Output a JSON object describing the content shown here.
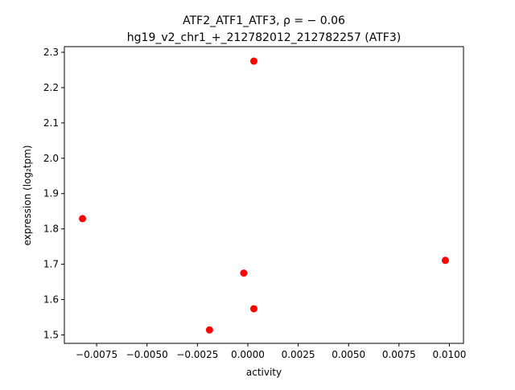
{
  "chart_data": {
    "type": "scatter",
    "title_line1": "ATF2_ATF1_ATF3, ρ = − 0.06",
    "title_line2": "hg19_v2_chr1_+_212782012_212782257 (ATF3)",
    "xlabel": "activity",
    "ylabel": "expression (log₂tpm)",
    "xlim": [
      -0.0091,
      0.0107
    ],
    "ylim": [
      1.476,
      2.316
    ],
    "x_ticks": [
      -0.0075,
      -0.005,
      -0.0025,
      0.0,
      0.0025,
      0.005,
      0.0075,
      0.01
    ],
    "x_tick_labels": [
      "−0.0075",
      "−0.0050",
      "−0.0025",
      "0.0000",
      "0.0025",
      "0.0050",
      "0.0075",
      "0.0100"
    ],
    "y_ticks": [
      1.5,
      1.6,
      1.7,
      1.8,
      1.9,
      2.0,
      2.1,
      2.2,
      2.3
    ],
    "y_tick_labels": [
      "1.5",
      "1.6",
      "1.7",
      "1.8",
      "1.9",
      "2.0",
      "2.1",
      "2.2",
      "2.3"
    ],
    "grid": false,
    "point_color": "#ff0000",
    "points": [
      {
        "x": -0.0082,
        "y": 1.829
      },
      {
        "x": -0.0019,
        "y": 1.514
      },
      {
        "x": -0.0002,
        "y": 1.675
      },
      {
        "x": 0.0003,
        "y": 1.574
      },
      {
        "x": 0.0003,
        "y": 2.275
      },
      {
        "x": 0.0098,
        "y": 1.711
      }
    ]
  }
}
